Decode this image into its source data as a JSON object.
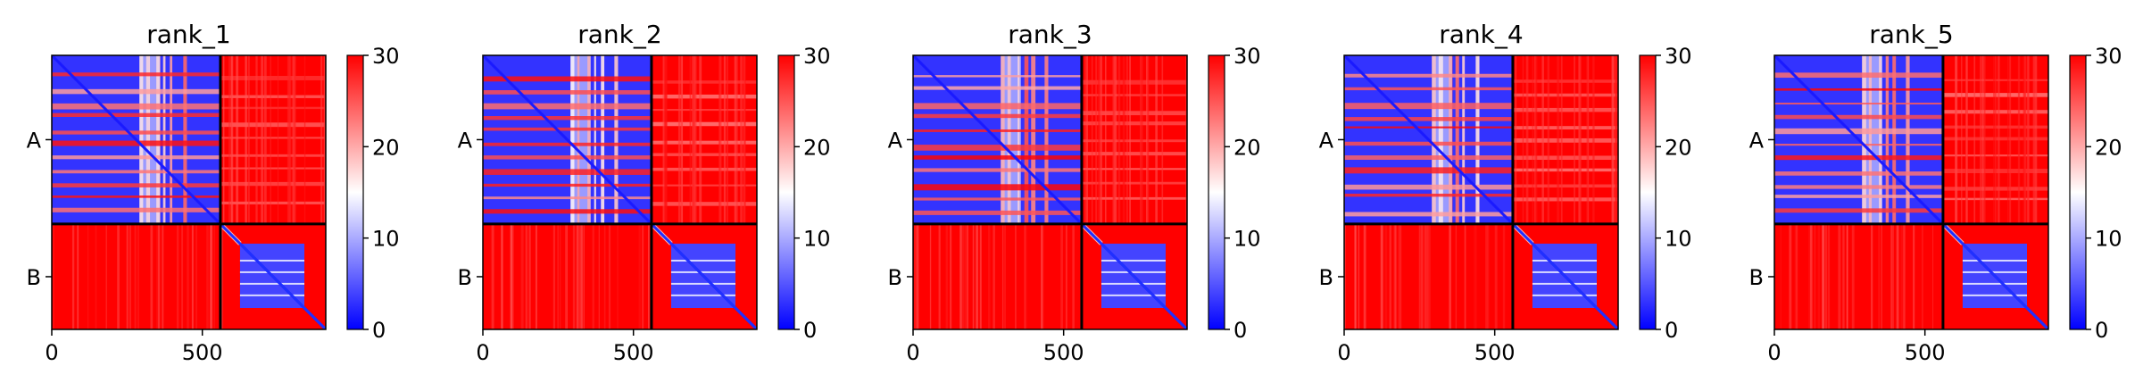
{
  "chart_data": [
    {
      "type": "heatmap",
      "title": "rank_1",
      "xticks": [
        0,
        500
      ],
      "yticklabels": [
        "A",
        "B"
      ],
      "chain_lengths": [
        560,
        350
      ],
      "colorbar": {
        "ticks": [
          0,
          10,
          20,
          30
        ],
        "range": [
          0,
          30
        ],
        "colormap": "bwr"
      }
    },
    {
      "type": "heatmap",
      "title": "rank_2",
      "xticks": [
        0,
        500
      ],
      "yticklabels": [
        "A",
        "B"
      ],
      "chain_lengths": [
        560,
        350
      ],
      "colorbar": {
        "ticks": [
          0,
          10,
          20,
          30
        ],
        "range": [
          0,
          30
        ],
        "colormap": "bwr"
      }
    },
    {
      "type": "heatmap",
      "title": "rank_3",
      "xticks": [
        0,
        500
      ],
      "yticklabels": [
        "A",
        "B"
      ],
      "chain_lengths": [
        560,
        350
      ],
      "colorbar": {
        "ticks": [
          0,
          10,
          20,
          30
        ],
        "range": [
          0,
          30
        ],
        "colormap": "bwr"
      }
    },
    {
      "type": "heatmap",
      "title": "rank_4",
      "xticks": [
        0,
        500
      ],
      "yticklabels": [
        "A",
        "B"
      ],
      "chain_lengths": [
        560,
        350
      ],
      "colorbar": {
        "ticks": [
          0,
          10,
          20,
          30
        ],
        "range": [
          0,
          30
        ],
        "colormap": "bwr"
      }
    },
    {
      "type": "heatmap",
      "title": "rank_5",
      "xticks": [
        0,
        500
      ],
      "yticklabels": [
        "A",
        "B"
      ],
      "chain_lengths": [
        560,
        350
      ],
      "colorbar": {
        "ticks": [
          0,
          10,
          20,
          30
        ],
        "range": [
          0,
          30
        ],
        "colormap": "bwr"
      }
    }
  ],
  "colors": {
    "low": "#0000ff",
    "mid": "#ffffff",
    "high": "#ff0000",
    "divider": "#000000"
  }
}
